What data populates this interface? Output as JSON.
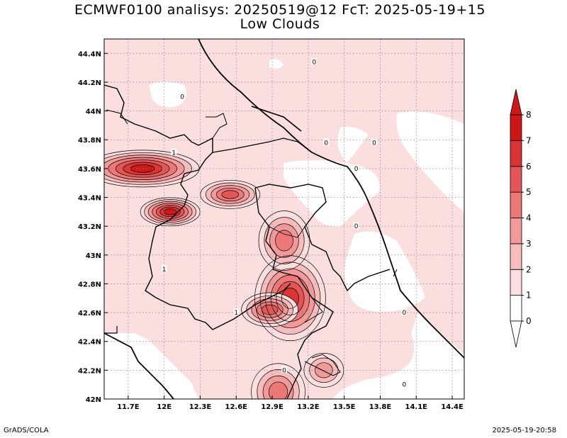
{
  "header": {
    "title_line1": "ECMWF0100 analisys: 20250519@12 FcT: 2025-05-19+15",
    "title_line2": "Low Clouds"
  },
  "footer": {
    "left": "GrADS/COLA",
    "right": "2025-05-19-20:58"
  },
  "chart_data": {
    "type": "heatmap",
    "title": "ECMWF0100 analisys: 20250519@12 FcT: 2025-05-19+15",
    "subtitle": "Low Clouds",
    "xlim": [
      11.5,
      14.5
    ],
    "ylim": [
      42.0,
      44.5
    ],
    "x_ticks": [
      {
        "value": 11.7,
        "label": "11.7E"
      },
      {
        "value": 12.0,
        "label": "12E"
      },
      {
        "value": 12.3,
        "label": "12.3E"
      },
      {
        "value": 12.6,
        "label": "12.6E"
      },
      {
        "value": 12.9,
        "label": "12.9E"
      },
      {
        "value": 13.2,
        "label": "13.2E"
      },
      {
        "value": 13.5,
        "label": "13.5E"
      },
      {
        "value": 13.8,
        "label": "13.8E"
      },
      {
        "value": 14.1,
        "label": "14.1E"
      },
      {
        "value": 14.4,
        "label": "14.4E"
      }
    ],
    "y_ticks": [
      {
        "value": 42.0,
        "label": "42N"
      },
      {
        "value": 42.2,
        "label": "42.2N"
      },
      {
        "value": 42.4,
        "label": "42.4N"
      },
      {
        "value": 42.6,
        "label": "42.6N"
      },
      {
        "value": 42.8,
        "label": "42.8N"
      },
      {
        "value": 43.0,
        "label": "43N"
      },
      {
        "value": 43.2,
        "label": "43.2N"
      },
      {
        "value": 43.4,
        "label": "43.4N"
      },
      {
        "value": 43.6,
        "label": "43.6N"
      },
      {
        "value": 43.8,
        "label": "43.8N"
      },
      {
        "value": 44.0,
        "label": "44N"
      },
      {
        "value": 44.2,
        "label": "44.2N"
      },
      {
        "value": 44.4,
        "label": "44.4N"
      }
    ],
    "grid": true,
    "colorbar": {
      "levels": [
        0,
        1,
        2,
        3,
        4,
        5,
        6,
        7,
        8
      ],
      "colors": [
        "#ffffff",
        "#fbdede",
        "#f7bcbc",
        "#f29a9a",
        "#ec7878",
        "#e45656",
        "#dc3434",
        "#d11616"
      ],
      "placement": "right"
    },
    "contour_labels": [
      {
        "lon": 13.25,
        "lat": 44.34,
        "text": "0"
      },
      {
        "lon": 12.15,
        "lat": 44.1,
        "text": "0"
      },
      {
        "lon": 13.35,
        "lat": 43.78,
        "text": "0"
      },
      {
        "lon": 13.75,
        "lat": 43.78,
        "text": "0"
      },
      {
        "lon": 13.6,
        "lat": 43.6,
        "text": "0"
      },
      {
        "lon": 13.6,
        "lat": 43.2,
        "text": "0"
      },
      {
        "lon": 14.0,
        "lat": 42.6,
        "text": "0"
      },
      {
        "lon": 13.0,
        "lat": 42.2,
        "text": "0"
      },
      {
        "lon": 14.0,
        "lat": 42.1,
        "text": "0"
      },
      {
        "lon": 12.08,
        "lat": 43.71,
        "text": "1"
      },
      {
        "lon": 12.0,
        "lat": 42.9,
        "text": "1"
      },
      {
        "lon": 12.6,
        "lat": 42.6,
        "text": "1"
      }
    ],
    "maxima": [
      {
        "lon": 11.82,
        "lat": 43.6,
        "value": 7
      },
      {
        "lon": 12.05,
        "lat": 43.3,
        "value": 7
      },
      {
        "lon": 12.55,
        "lat": 43.42,
        "value": 5
      },
      {
        "lon": 13.05,
        "lat": 42.7,
        "value": 6
      },
      {
        "lon": 12.88,
        "lat": 42.62,
        "value": 5
      },
      {
        "lon": 13.0,
        "lat": 43.1,
        "value": 4
      },
      {
        "lon": 13.33,
        "lat": 42.2,
        "value": 3
      },
      {
        "lon": 12.95,
        "lat": 42.05,
        "value": 4
      }
    ]
  }
}
